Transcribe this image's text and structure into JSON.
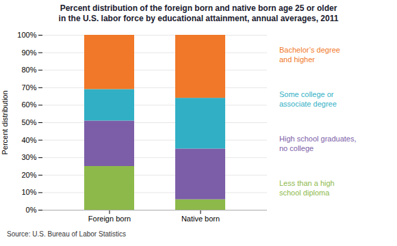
{
  "chart_data": {
    "type": "bar",
    "stacked": true,
    "title": "Percent distribution of the foreign born and native born age 25 or older\nin the U.S. labor force by educational attainment, annual averages, 2011",
    "ylabel": "Percent distribution",
    "caption": "Source: U.S. Bureau of Labor Statistics",
    "categories": [
      "Foreign born",
      "Native born"
    ],
    "series": [
      {
        "name": "Less than a high\nschool diploma",
        "color": "#8DB94A",
        "values": [
          25,
          6
        ]
      },
      {
        "name": "High school graduates,\nno college",
        "color": "#7B5EA7",
        "values": [
          26,
          29
        ]
      },
      {
        "name": "Some college or\nassociate degree",
        "color": "#31B0C5",
        "values": [
          18,
          29
        ]
      },
      {
        "name": "Bachelor’s degree\nand higher",
        "color": "#F07828",
        "values": [
          31,
          36
        ]
      }
    ],
    "ylim": [
      0,
      100
    ],
    "yticks": [
      {
        "value": 0,
        "label": "0%"
      },
      {
        "value": 10,
        "label": "10%"
      },
      {
        "value": 20,
        "label": "20%"
      },
      {
        "value": 30,
        "label": "30%"
      },
      {
        "value": 40,
        "label": "40%"
      },
      {
        "value": 50,
        "label": "50%"
      },
      {
        "value": 60,
        "label": "60%"
      },
      {
        "value": 70,
        "label": "70%"
      },
      {
        "value": 80,
        "label": "80%"
      },
      {
        "value": 90,
        "label": "90%"
      },
      {
        "value": 100,
        "label": "100%"
      }
    ],
    "grid": true,
    "legend": "right"
  }
}
